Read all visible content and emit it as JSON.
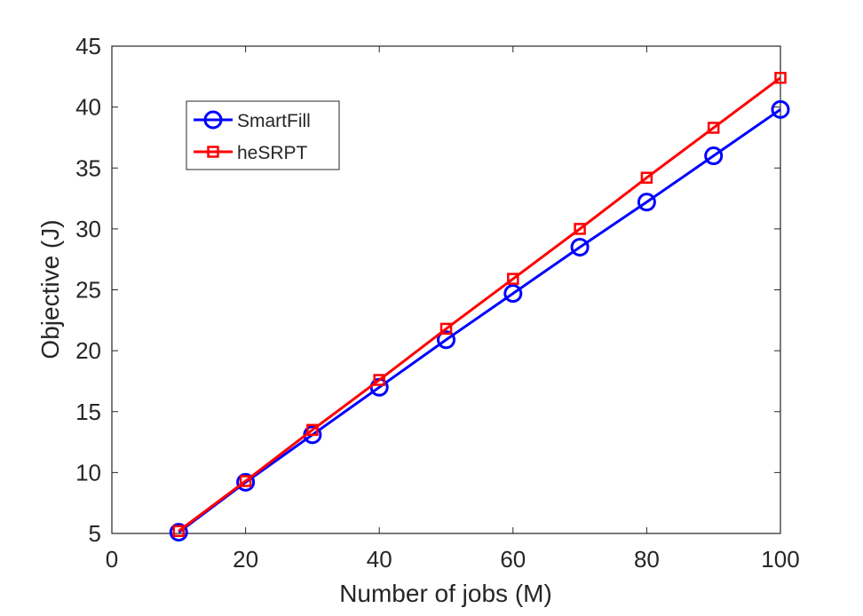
{
  "chart_data": {
    "type": "line",
    "xlabel": "Number of jobs (M)",
    "ylabel": "Objective (J)",
    "xlim": [
      0,
      100
    ],
    "ylim": [
      5,
      45
    ],
    "xticks": [
      0,
      20,
      40,
      60,
      80,
      100
    ],
    "yticks": [
      5,
      10,
      15,
      20,
      25,
      30,
      35,
      40,
      45
    ],
    "grid": false,
    "legend_position": "top-left",
    "x": [
      10,
      20,
      30,
      40,
      50,
      60,
      70,
      80,
      90,
      100
    ],
    "series": [
      {
        "name": "SmartFill",
        "color": "#0000ff",
        "marker": "circle",
        "values": [
          5.1,
          9.2,
          13.1,
          17.0,
          20.9,
          24.7,
          28.5,
          32.2,
          36.0,
          39.8
        ]
      },
      {
        "name": "heSRPT",
        "color": "#ff0000",
        "marker": "square",
        "values": [
          5.2,
          9.3,
          13.5,
          17.6,
          21.8,
          25.9,
          30.0,
          34.2,
          38.3,
          42.4
        ]
      }
    ]
  }
}
